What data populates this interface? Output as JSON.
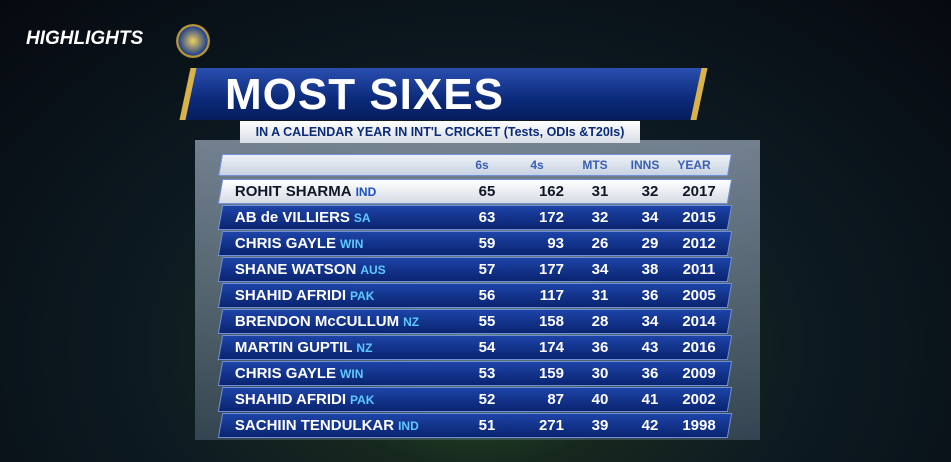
{
  "header": {
    "label": "HIGHLIGHTS"
  },
  "title": "MOST SIXES",
  "subtitle": "IN A CALENDAR YEAR IN INT'L CRICKET (Tests, ODIs &T20Is)",
  "table": {
    "columns": [
      "6s",
      "4s",
      "MTS",
      "INNS",
      "YEAR"
    ],
    "rows": [
      {
        "player": "ROHIT SHARMA",
        "country": "IND",
        "values": [
          65,
          162,
          31,
          32,
          2017
        ]
      },
      {
        "player": "AB de VILLIERS",
        "country": "SA",
        "values": [
          63,
          172,
          32,
          34,
          2015
        ]
      },
      {
        "player": "CHRIS GAYLE",
        "country": "WIN",
        "values": [
          59,
          93,
          26,
          29,
          2012
        ]
      },
      {
        "player": "SHANE WATSON",
        "country": "AUS",
        "values": [
          57,
          177,
          34,
          38,
          2011
        ]
      },
      {
        "player": "SHAHID AFRIDI",
        "country": "PAK",
        "values": [
          56,
          117,
          31,
          36,
          2005
        ]
      },
      {
        "player": "BRENDON McCULLUM",
        "country": "NZ",
        "values": [
          55,
          158,
          28,
          34,
          2014
        ]
      },
      {
        "player": "MARTIN GUPTIL",
        "country": "NZ",
        "values": [
          54,
          174,
          36,
          43,
          2016
        ]
      },
      {
        "player": "CHRIS GAYLE",
        "country": "WIN",
        "values": [
          53,
          159,
          30,
          36,
          2009
        ]
      },
      {
        "player": "SHAHID AFRIDI",
        "country": "PAK",
        "values": [
          52,
          87,
          40,
          41,
          2002
        ]
      },
      {
        "player": "SACHIIN TENDULKAR",
        "country": "IND",
        "values": [
          51,
          271,
          39,
          42,
          1998
        ]
      }
    ]
  }
}
